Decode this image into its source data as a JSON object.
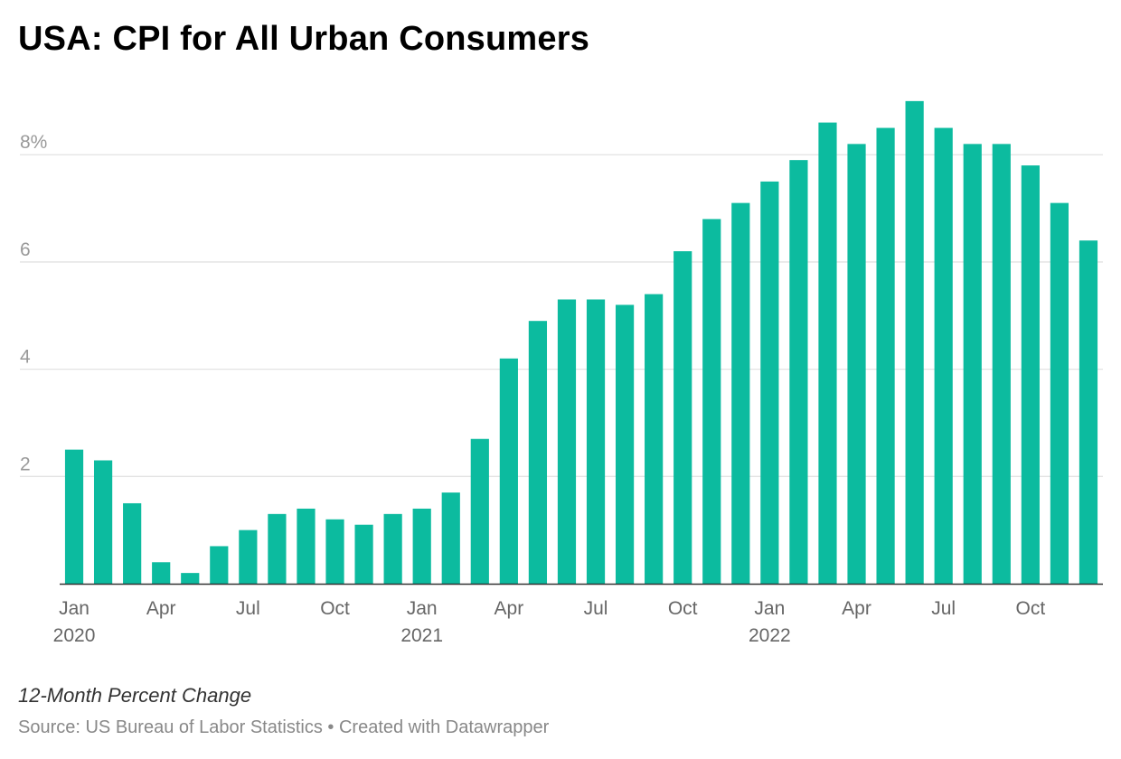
{
  "title": "USA: CPI for All Urban Consumers",
  "note": "12-Month Percent Change",
  "footer": {
    "source": "Source: US Bureau of Labor Statistics",
    "separator": " • ",
    "credit": "Created with Datawrapper"
  },
  "colors": {
    "bar": "#0cbb9f",
    "grid": "#e2e2e2",
    "axis": "#333333"
  },
  "chart_data": {
    "type": "bar",
    "title": "USA: CPI for All Urban Consumers",
    "xlabel": "",
    "ylabel": "12-Month Percent Change",
    "ylim": [
      0,
      9.2
    ],
    "grid": true,
    "yticks": [
      {
        "value": 2,
        "label": "2"
      },
      {
        "value": 4,
        "label": "4"
      },
      {
        "value": 6,
        "label": "6"
      },
      {
        "value": 8,
        "label": "8%"
      }
    ],
    "categories": [
      "2020-01",
      "2020-02",
      "2020-03",
      "2020-04",
      "2020-05",
      "2020-06",
      "2020-07",
      "2020-08",
      "2020-09",
      "2020-10",
      "2020-11",
      "2020-12",
      "2021-01",
      "2021-02",
      "2021-03",
      "2021-04",
      "2021-05",
      "2021-06",
      "2021-07",
      "2021-08",
      "2021-09",
      "2021-10",
      "2021-11",
      "2021-12",
      "2022-01",
      "2022-02",
      "2022-03",
      "2022-04",
      "2022-05",
      "2022-06",
      "2022-07",
      "2022-08",
      "2022-09",
      "2022-10",
      "2022-11",
      "2022-12"
    ],
    "values": [
      2.5,
      2.3,
      1.5,
      0.4,
      0.2,
      0.7,
      1.0,
      1.3,
      1.4,
      1.2,
      1.1,
      1.3,
      1.4,
      1.7,
      2.7,
      4.2,
      4.9,
      5.3,
      5.3,
      5.2,
      5.4,
      6.2,
      6.8,
      7.1,
      7.5,
      7.9,
      8.6,
      8.2,
      8.5,
      9.0,
      8.5,
      8.2,
      8.2,
      7.8,
      7.1,
      6.4
    ],
    "xticks": [
      {
        "index": 0,
        "label": "Jan",
        "year": "2020"
      },
      {
        "index": 3,
        "label": "Apr"
      },
      {
        "index": 6,
        "label": "Jul"
      },
      {
        "index": 9,
        "label": "Oct"
      },
      {
        "index": 12,
        "label": "Jan",
        "year": "2021"
      },
      {
        "index": 15,
        "label": "Apr"
      },
      {
        "index": 18,
        "label": "Jul"
      },
      {
        "index": 21,
        "label": "Oct"
      },
      {
        "index": 24,
        "label": "Jan",
        "year": "2022"
      },
      {
        "index": 27,
        "label": "Apr"
      },
      {
        "index": 30,
        "label": "Jul"
      },
      {
        "index": 33,
        "label": "Oct"
      }
    ]
  }
}
